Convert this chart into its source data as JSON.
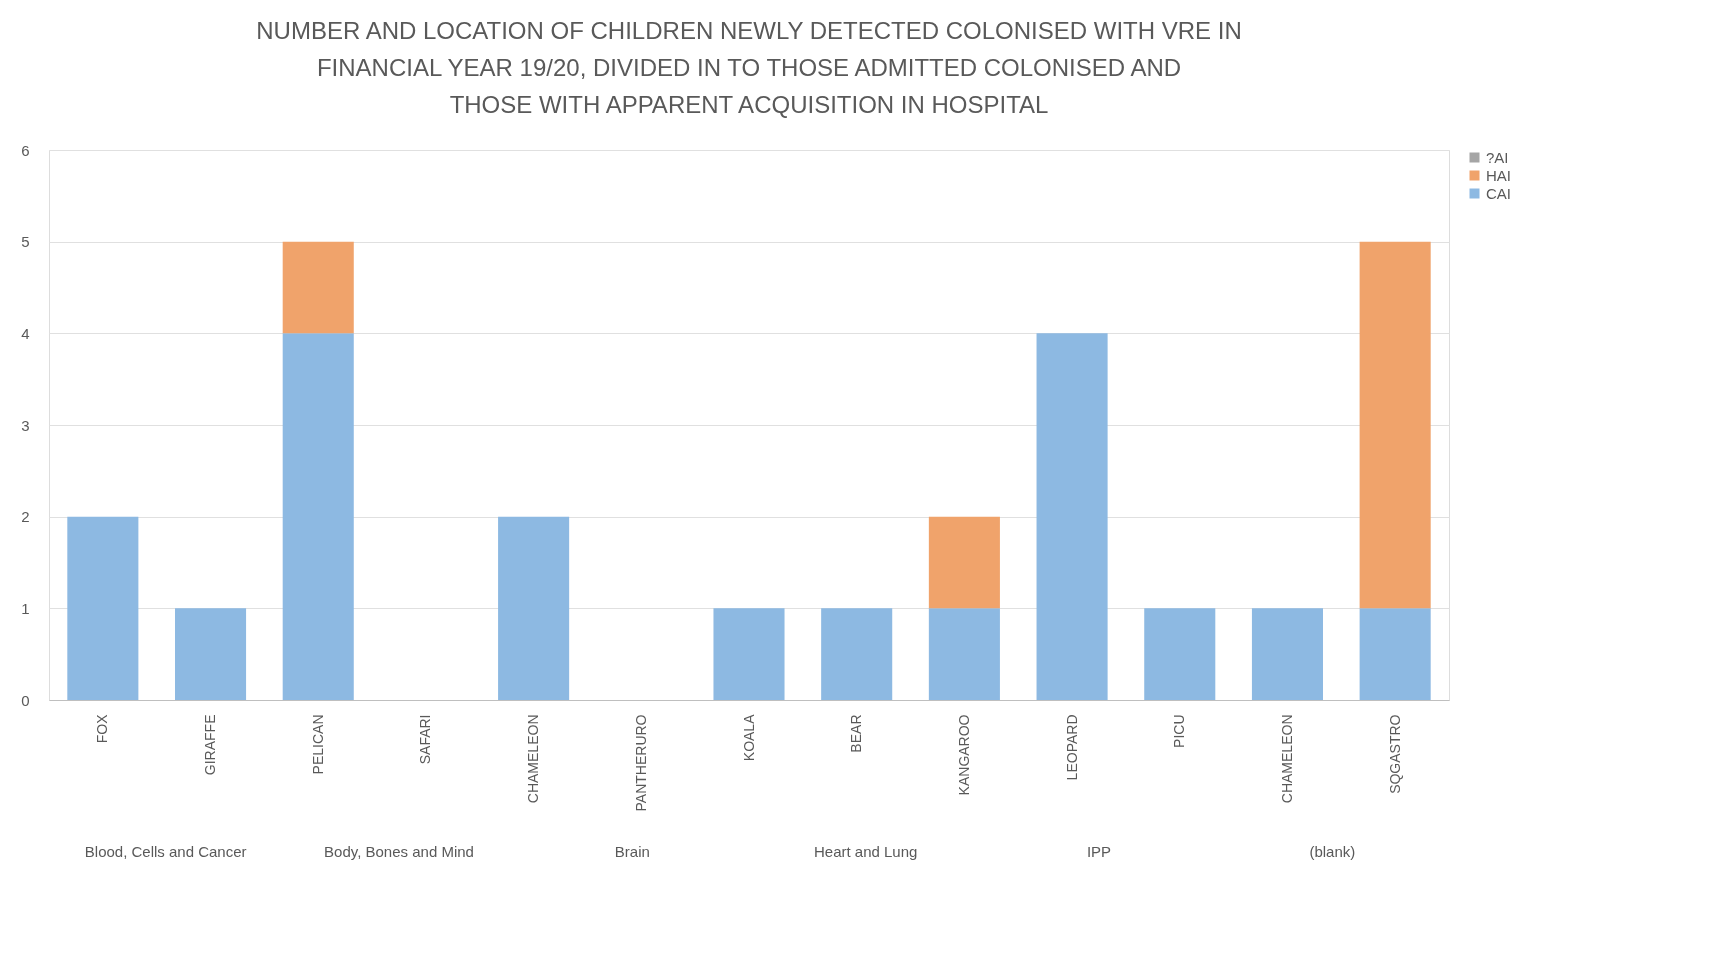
{
  "chart_data": {
    "type": "bar",
    "stacked": true,
    "title": "NUMBER AND LOCATION OF CHILDREN NEWLY DETECTED COLONISED WITH VRE IN FINANCIAL YEAR 19/20, DIVIDED IN TO THOSE ADMITTED COLONISED AND THOSE WITH APPARENT ACQUISITION IN HOSPITAL",
    "categories": [
      "FOX",
      "GIRAFFE",
      "PELICAN",
      "SAFARI",
      "CHAMELEON",
      "PANTHERURO",
      "KOALA",
      "BEAR",
      "KANGAROO",
      "LEOPARD",
      "PICU",
      "CHAMELEON",
      "SQGASTRO"
    ],
    "series": [
      {
        "name": "CAI",
        "color": "#8db9e2",
        "values": [
          2,
          1,
          4,
          0,
          2,
          0,
          1,
          1,
          1,
          4,
          1,
          1,
          1
        ]
      },
      {
        "name": "HAI",
        "color": "#f0a36b",
        "values": [
          0,
          0,
          1,
          0,
          0,
          0,
          0,
          0,
          1,
          0,
          0,
          0,
          4
        ]
      },
      {
        "name": "?AI",
        "color": "#a5a5a5",
        "values": [
          0,
          0,
          0,
          0,
          0,
          0,
          0,
          0,
          0,
          0,
          0,
          0,
          0
        ]
      }
    ],
    "annotations": [
      "Blood, Cells and Cancer",
      "Body, Bones and Mind",
      "Brain",
      "Heart and Lung",
      "IPP",
      "(blank)"
    ],
    "ylim": [
      0,
      6
    ],
    "yticks": [
      0,
      1,
      2,
      3,
      4,
      5,
      6
    ],
    "grid": "y",
    "legend": "right"
  }
}
